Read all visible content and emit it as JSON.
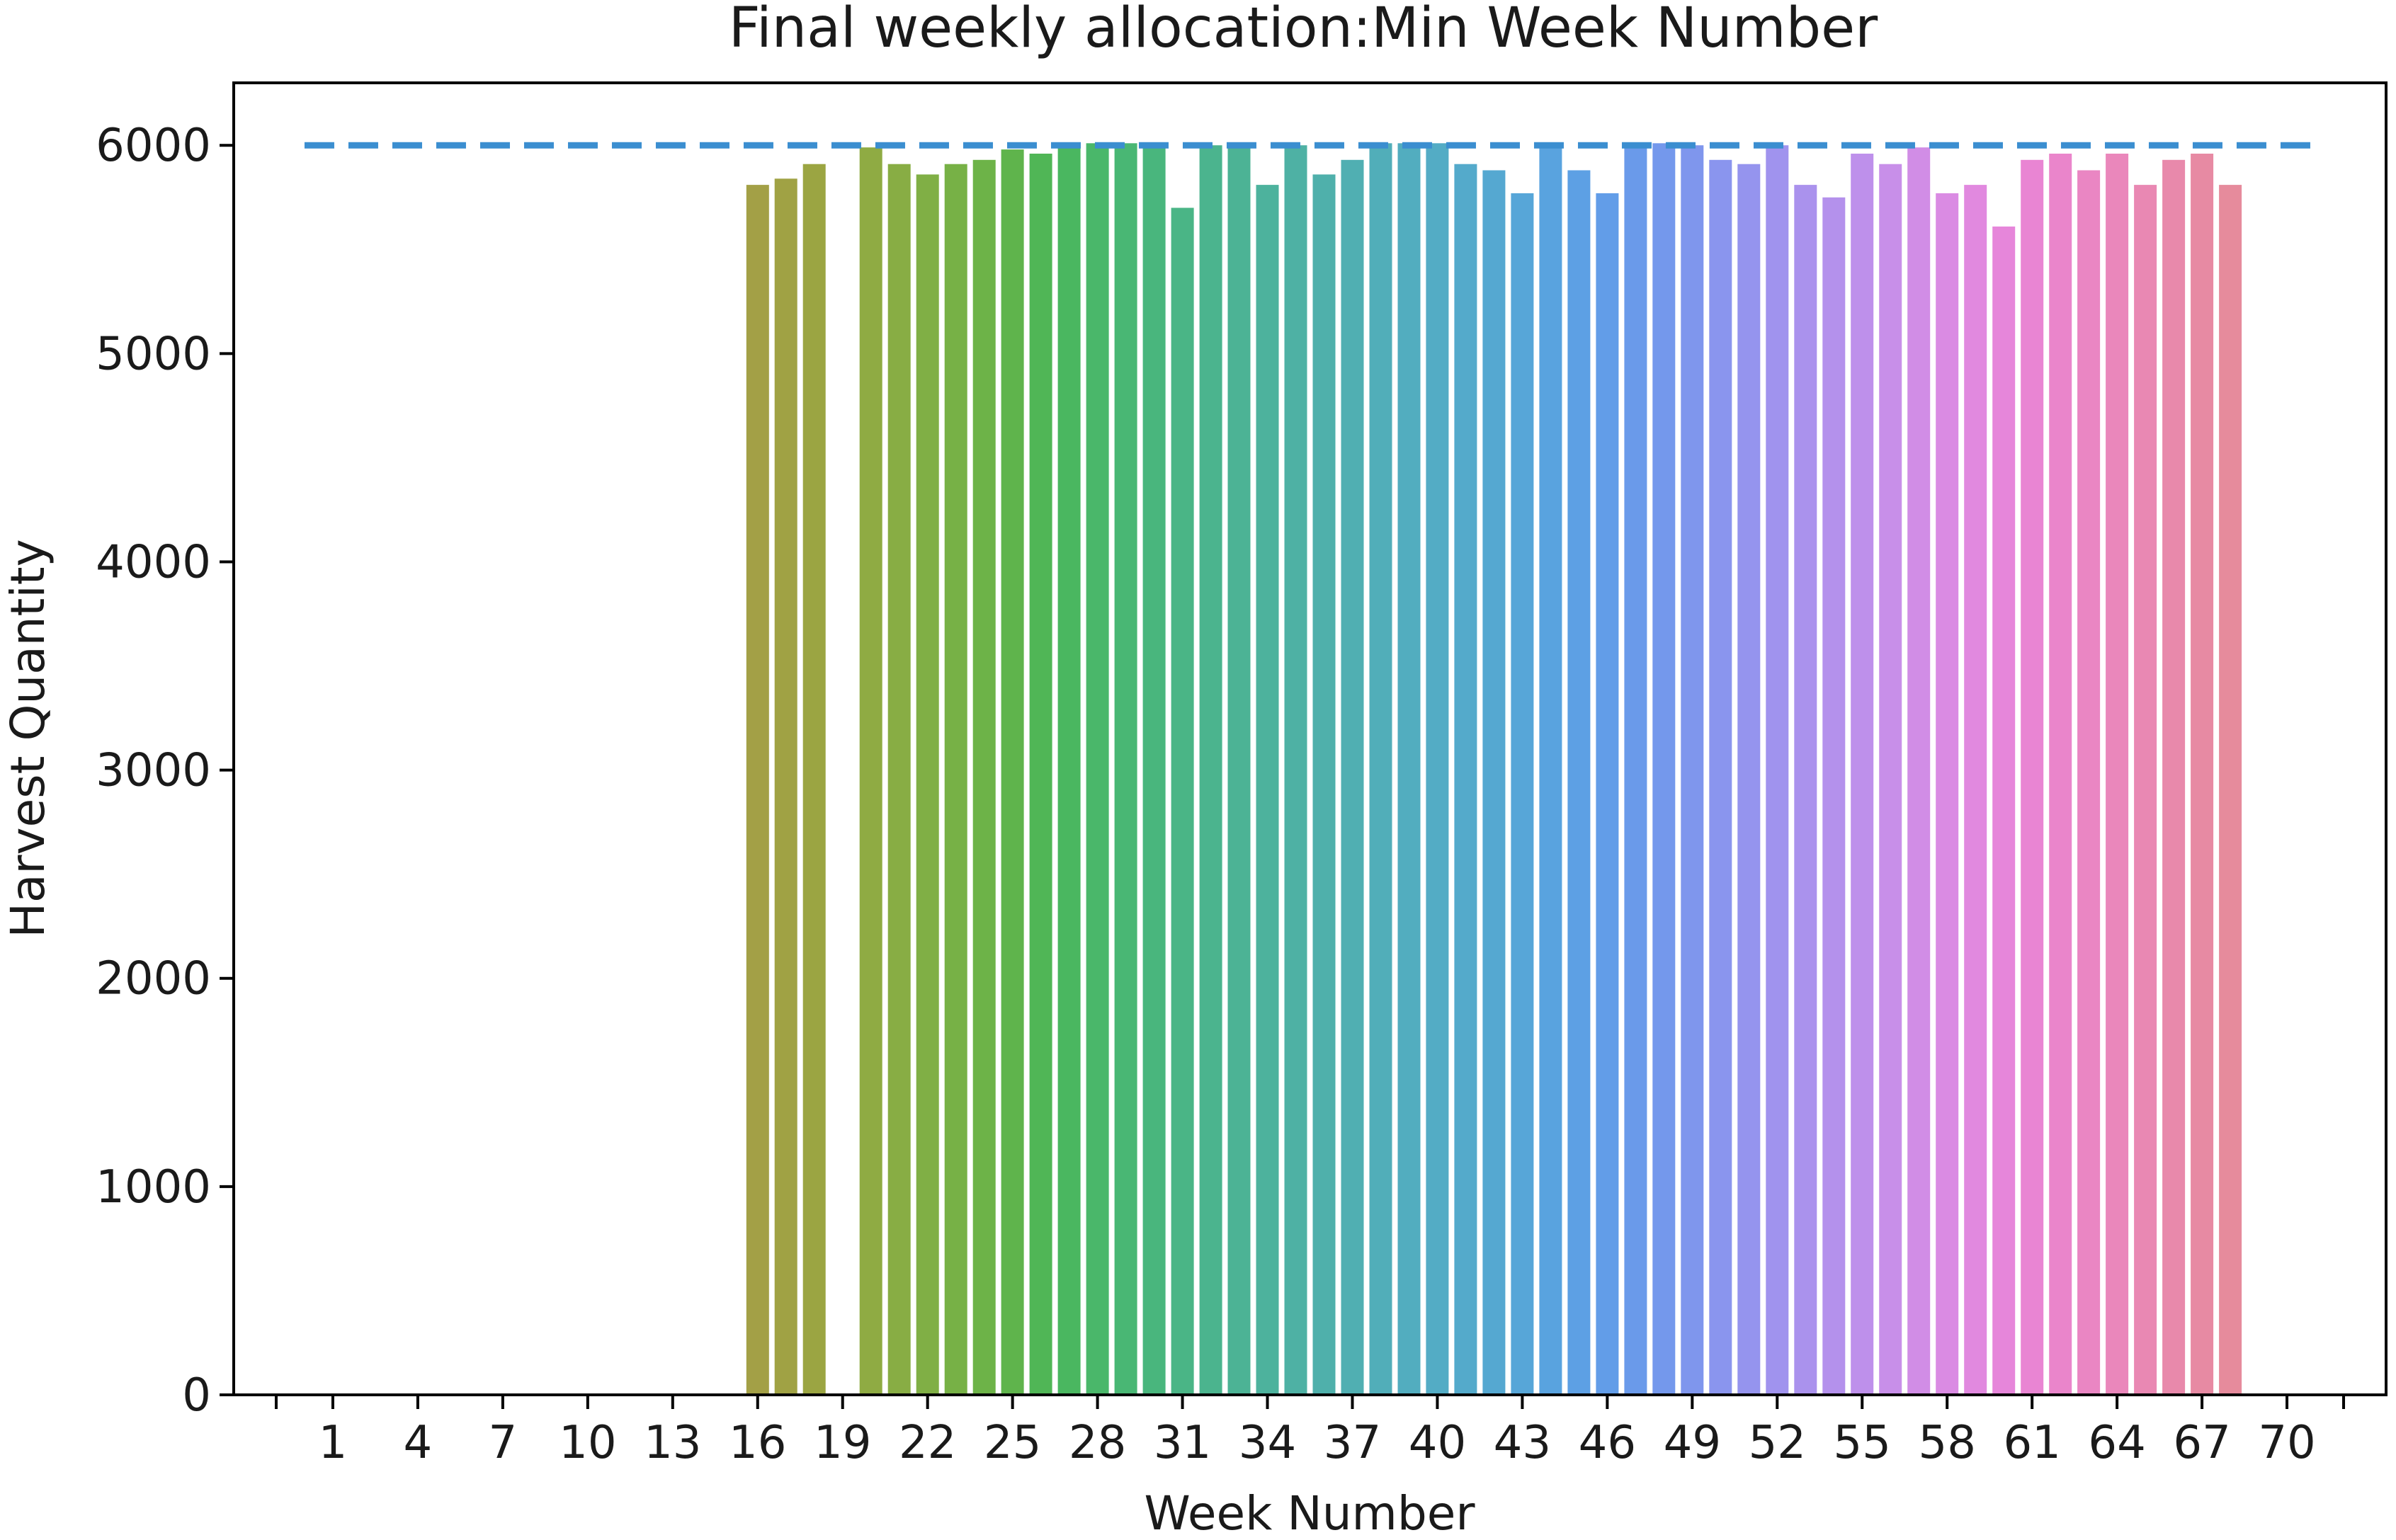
{
  "chart_data": {
    "type": "bar",
    "title": "Final weekly allocation:Min Week Number",
    "xlabel": "Week Number",
    "ylabel": "Harvest Quantity",
    "ylim": [
      0,
      6300
    ],
    "xlim": [
      -2.5,
      73.5
    ],
    "yticks": [
      0,
      1000,
      2000,
      3000,
      4000,
      5000,
      6000
    ],
    "xticks": [
      1,
      4,
      7,
      10,
      13,
      16,
      19,
      22,
      25,
      28,
      31,
      34,
      37,
      40,
      43,
      46,
      49,
      52,
      55,
      58,
      61,
      64,
      67,
      70
    ],
    "x_minor_ticks": [
      -1,
      72
    ],
    "grid": false,
    "legend": "none",
    "reference_line": {
      "y": 6000,
      "x_from": 0,
      "x_to": 71,
      "style": "dashed",
      "color": "#3b8ed0"
    },
    "x": [
      16,
      17,
      18,
      19,
      20,
      21,
      22,
      23,
      24,
      25,
      26,
      27,
      28,
      29,
      30,
      31,
      32,
      33,
      34,
      35,
      36,
      37,
      38,
      39,
      40,
      41,
      42,
      43,
      44,
      45,
      46,
      47,
      48,
      49,
      50,
      51,
      52,
      53,
      54,
      55,
      56,
      57,
      58,
      59,
      60,
      61,
      62,
      63,
      64,
      65,
      66,
      67,
      68
    ],
    "values": [
      5810,
      5840,
      5910,
      0,
      5990,
      5910,
      5860,
      5910,
      5930,
      5980,
      5960,
      6000,
      6010,
      6010,
      6010,
      5700,
      6000,
      6000,
      5810,
      6000,
      5860,
      5930,
      6010,
      6010,
      6010,
      5910,
      5880,
      5770,
      6000,
      5880,
      5770,
      6010,
      6010,
      6000,
      5930,
      5910,
      6000,
      5810,
      5750,
      5960,
      5910,
      5990,
      5770,
      5810,
      5610,
      5930,
      5960,
      5880,
      5960,
      5810,
      5930,
      5960,
      5810
    ],
    "colors": [
      "#a3a046",
      "#a0a244",
      "#9ba542",
      "#96a842",
      "#8fab43",
      "#88ad44",
      "#80af45",
      "#77b146",
      "#6db348",
      "#5fb44c",
      "#50b656",
      "#4ab760",
      "#4ab76a",
      "#49b774",
      "#49b67d",
      "#4ab586",
      "#4bb48e",
      "#4cb395",
      "#4db29d",
      "#4eb1a4",
      "#4fb0ab",
      "#50afb2",
      "#51aeb9",
      "#52adbf",
      "#53acc5",
      "#54aacb",
      "#55a8d1",
      "#57a6d8",
      "#59a3df",
      "#5da0e4",
      "#629de8",
      "#6a9aea",
      "#7498ec",
      "#7f96ed",
      "#8a95ee",
      "#9594ee",
      "#a093ee",
      "#aa92ed",
      "#b491ec",
      "#be90eb",
      "#c88fe9",
      "#d18de6",
      "#da8be3",
      "#e189df",
      "#e686da",
      "#e985d3",
      "#ea85cb",
      "#ea86c3",
      "#ea87bb",
      "#e988b3",
      "#e889ab",
      "#e78aa3",
      "#e68b9c"
    ]
  }
}
